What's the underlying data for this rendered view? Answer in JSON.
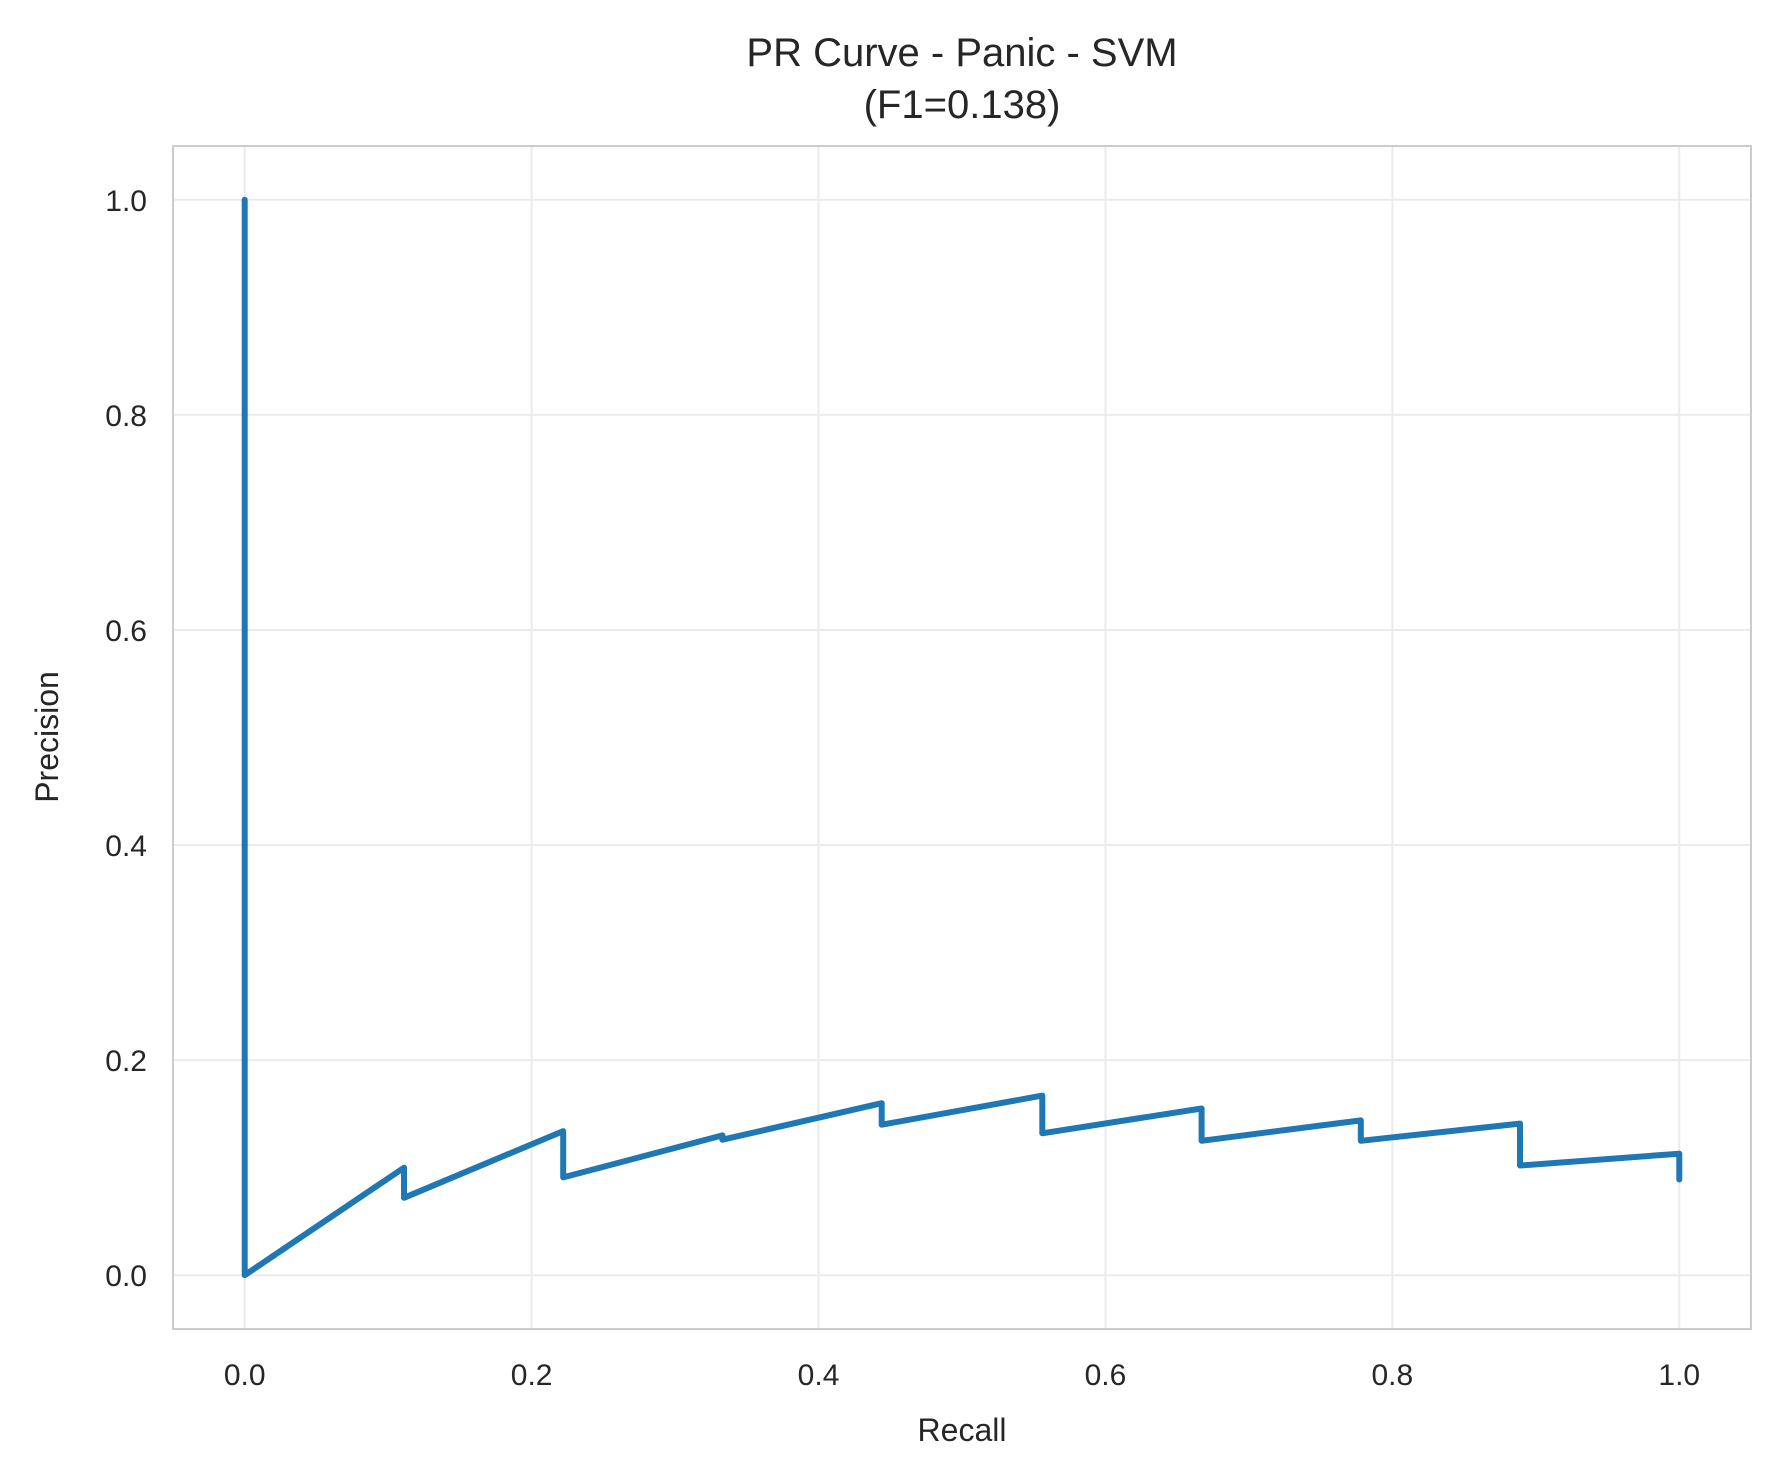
{
  "chart_data": {
    "type": "line",
    "title": "PR Curve - Panic - SVM",
    "subtitle": "(F1=0.138)",
    "xlabel": "Recall",
    "ylabel": "Precision",
    "xlim": [
      -0.05,
      1.05
    ],
    "ylim": [
      -0.05,
      1.05
    ],
    "xticks": [
      "0.0",
      "0.2",
      "0.4",
      "0.6",
      "0.8",
      "1.0"
    ],
    "yticks": [
      "0.0",
      "0.2",
      "0.4",
      "0.6",
      "0.8",
      "1.0"
    ],
    "grid": true,
    "color": "#1f77b4",
    "series": [
      {
        "x": [
          0.0,
          0.0,
          0.111,
          0.111,
          0.222,
          0.222,
          0.333,
          0.333,
          0.444,
          0.444,
          0.556,
          0.556,
          0.667,
          0.667,
          0.778,
          0.778,
          0.889,
          0.889,
          1.0,
          1.0
        ],
        "y": [
          1.0,
          0.0,
          0.1,
          0.072,
          0.134,
          0.091,
          0.13,
          0.126,
          0.16,
          0.14,
          0.167,
          0.132,
          0.155,
          0.125,
          0.144,
          0.125,
          0.141,
          0.102,
          0.113,
          0.089
        ]
      }
    ]
  }
}
